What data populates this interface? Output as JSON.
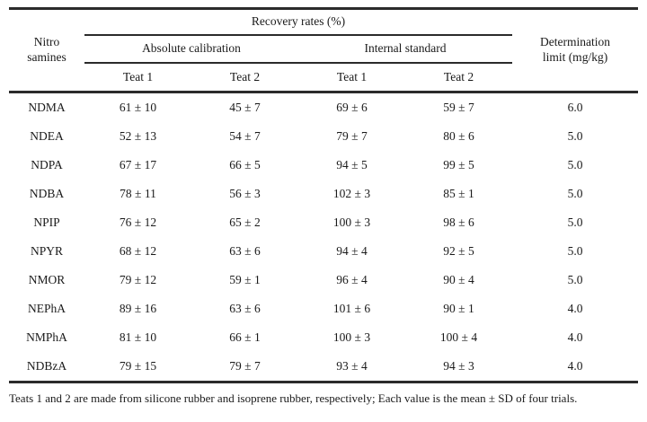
{
  "table": {
    "row_header": "Nitro\nsamines",
    "recovery_header": "Recovery rates (%)",
    "group_headers": [
      "Absolute calibration",
      "Internal standard"
    ],
    "teat_headers": [
      "Teat 1",
      "Teat 2",
      "Teat 1",
      "Teat 2"
    ],
    "det_limit_header": "Determination\nlimit (mg/kg)",
    "rows": [
      {
        "name": "NDMA",
        "values": [
          "61 ± 10",
          "45 ± 7",
          "69 ± 6",
          "59 ± 7",
          "6.0"
        ]
      },
      {
        "name": "NDEA",
        "values": [
          "52 ± 13",
          "54 ± 7",
          "79 ± 7",
          "80 ± 6",
          "5.0"
        ]
      },
      {
        "name": "NDPA",
        "values": [
          "67 ± 17",
          "66 ± 5",
          "94 ± 5",
          "99 ± 5",
          "5.0"
        ]
      },
      {
        "name": "NDBA",
        "values": [
          "78 ± 11",
          "56 ± 3",
          "102 ± 3",
          "85 ± 1",
          "5.0"
        ]
      },
      {
        "name": "NPIP",
        "values": [
          "76 ± 12",
          "65 ± 2",
          "100 ± 3",
          "98 ± 6",
          "5.0"
        ]
      },
      {
        "name": "NPYR",
        "values": [
          "68 ± 12",
          "63 ± 6",
          "94 ± 4",
          "92 ± 5",
          "5.0"
        ]
      },
      {
        "name": "NMOR",
        "values": [
          "79 ± 12",
          "59 ± 1",
          "96 ± 4",
          "90 ± 4",
          "5.0"
        ]
      },
      {
        "name": "NEPhA",
        "values": [
          "89 ± 16",
          "63 ± 6",
          "101 ± 6",
          "90 ± 1",
          "4.0"
        ]
      },
      {
        "name": "NMPhA",
        "values": [
          "81 ± 10",
          "66 ± 1",
          "100 ± 3",
          "100 ± 4",
          "4.0"
        ]
      },
      {
        "name": "NDBzA",
        "values": [
          "79 ± 15",
          "79 ± 7",
          "93 ± 4",
          "94 ± 3",
          "4.0"
        ]
      }
    ]
  },
  "footnote": "Teats 1 and 2 are made from silicone rubber and isoprene rubber, respectively; Each value is the mean ± SD of four trials.",
  "colors": {
    "text": "#1a1a1a",
    "rule": "#2b2b2b",
    "background": "#ffffff"
  }
}
